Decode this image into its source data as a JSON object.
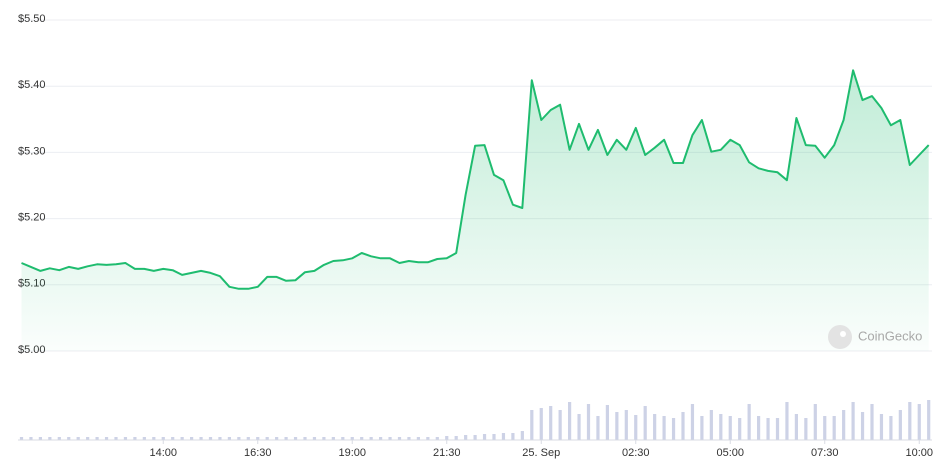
{
  "chart_data": {
    "type": "line",
    "watermark": "CoinGecko",
    "categories": [
      null,
      null,
      null,
      null,
      null,
      null,
      null,
      null,
      null,
      null,
      null,
      null,
      null,
      null,
      null,
      "14:00",
      null,
      null,
      null,
      null,
      null,
      null,
      null,
      null,
      null,
      "16:30",
      null,
      null,
      null,
      null,
      null,
      null,
      null,
      null,
      null,
      "19:00",
      null,
      null,
      null,
      null,
      null,
      null,
      null,
      null,
      null,
      "21:30",
      null,
      null,
      null,
      null,
      null,
      null,
      null,
      null,
      null,
      "25. Sep",
      null,
      null,
      null,
      null,
      null,
      null,
      null,
      null,
      null,
      "02:30",
      null,
      null,
      null,
      null,
      null,
      null,
      null,
      null,
      null,
      "05:00",
      null,
      null,
      null,
      null,
      null,
      null,
      null,
      null,
      null,
      "07:30",
      null,
      null,
      null,
      null,
      null,
      null,
      null,
      null,
      null,
      "10:00",
      null
    ],
    "series": [
      {
        "color": "#1fbc6f",
        "values": [
          5.133,
          5.127,
          5.121,
          5.125,
          5.122,
          5.127,
          5.124,
          5.128,
          5.131,
          5.13,
          5.131,
          5.133,
          5.124,
          5.124,
          5.121,
          5.124,
          5.122,
          5.115,
          5.118,
          5.121,
          5.118,
          5.113,
          5.097,
          5.094,
          5.094,
          5.097,
          5.112,
          5.112,
          5.106,
          5.107,
          5.119,
          5.121,
          5.13,
          5.136,
          5.137,
          5.14,
          5.148,
          5.143,
          5.14,
          5.14,
          5.133,
          5.136,
          5.134,
          5.134,
          5.139,
          5.14,
          5.148,
          5.236,
          5.31,
          5.311,
          5.266,
          5.258,
          5.221,
          5.216,
          5.409,
          5.349,
          5.364,
          5.372,
          5.304,
          5.343,
          5.304,
          5.334,
          5.296,
          5.319,
          5.304,
          5.337,
          5.296,
          5.307,
          5.319,
          5.284,
          5.284,
          5.326,
          5.349,
          5.301,
          5.304,
          5.319,
          5.311,
          5.285,
          5.276,
          5.272,
          5.27,
          5.258,
          5.352,
          5.311,
          5.31,
          5.292,
          5.311,
          5.349,
          5.424,
          5.379,
          5.385,
          5.367,
          5.341,
          5.349,
          5.281,
          5.296,
          5.311
        ]
      }
    ],
    "volume": {
      "color": "#cdd2e6",
      "values": [
        3,
        3,
        3,
        3,
        3,
        3,
        3,
        3,
        3,
        3,
        3,
        3,
        3,
        3,
        3,
        3,
        3,
        3,
        3,
        3,
        3,
        3,
        3,
        3,
        3,
        3,
        3,
        3,
        3,
        3,
        3,
        3,
        3,
        3,
        3,
        3,
        3,
        3,
        3,
        3,
        3,
        3,
        3,
        3,
        3,
        4,
        4,
        5,
        5,
        6,
        6,
        7,
        7,
        9,
        30,
        32,
        34,
        30,
        38,
        26,
        36,
        24,
        35,
        28,
        30,
        25,
        34,
        26,
        24,
        22,
        28,
        36,
        24,
        30,
        26,
        24,
        22,
        36,
        24,
        22,
        22,
        38,
        26,
        22,
        36,
        24,
        24,
        30,
        38,
        28,
        36,
        26,
        24,
        30,
        38,
        36,
        40
      ]
    },
    "ylim": [
      5.0,
      5.5
    ],
    "yticks": [
      {
        "value": 5.0,
        "label": "$5.00"
      },
      {
        "value": 5.1,
        "label": "$5.10"
      },
      {
        "value": 5.2,
        "label": "$5.20"
      },
      {
        "value": 5.3,
        "label": "$5.30"
      },
      {
        "value": 5.4,
        "label": "$5.40"
      },
      {
        "value": 5.5,
        "label": "$5.50"
      }
    ],
    "grid": true
  }
}
